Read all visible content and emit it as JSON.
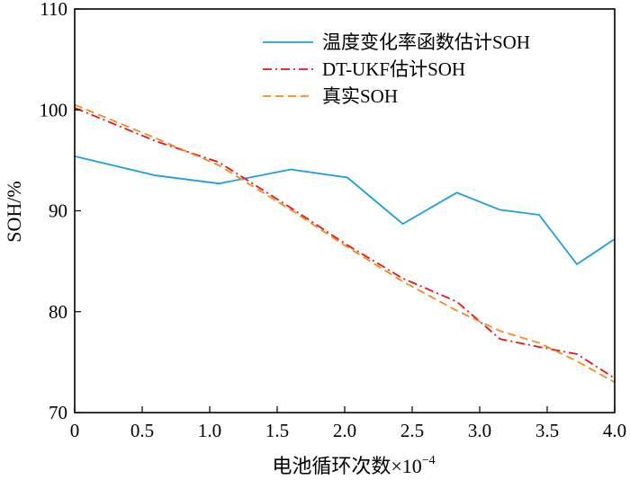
{
  "chart_data": {
    "type": "line",
    "xlabel": "电池循环次数",
    "xlabel_multiplier": "×10",
    "xlabel_exponent": "−4",
    "ylabel": "SOH/%",
    "xlim": [
      0,
      4.0
    ],
    "ylim": [
      70,
      110
    ],
    "x_ticks": [
      "0",
      "0.5",
      "1.0",
      "1.5",
      "2.0",
      "2.5",
      "3.0",
      "3.5",
      "4.0"
    ],
    "y_ticks": [
      "70",
      "80",
      "90",
      "100",
      "110"
    ],
    "grid": false,
    "legend_position": "top-right",
    "series": [
      {
        "name": "温度变化率函数估计SOH",
        "color": "#1e9fd9",
        "dash": "solid",
        "x": [
          0,
          0.6,
          1.07,
          1.6,
          2.02,
          2.43,
          2.83,
          3.15,
          3.44,
          3.72,
          4.0
        ],
        "y": [
          95.4,
          93.5,
          92.7,
          94.1,
          93.3,
          88.7,
          91.8,
          90.1,
          89.6,
          84.7,
          87.2
        ]
      },
      {
        "name": "DT-UKF估计SOH",
        "color": "#e8141c",
        "dash": "dashdot",
        "x": [
          0,
          0.6,
          1.07,
          1.6,
          2.02,
          2.43,
          2.83,
          3.15,
          3.44,
          3.72,
          4.0
        ],
        "y": [
          100.2,
          96.9,
          94.8,
          90.3,
          86.6,
          83.3,
          81.0,
          77.3,
          76.5,
          75.8,
          73.4
        ]
      },
      {
        "name": "真实SOH",
        "color": "#f28c1c",
        "dash": "dashed",
        "x": [
          0,
          0.6,
          1.07,
          1.6,
          2.02,
          2.43,
          2.83,
          3.15,
          3.44,
          3.72,
          4.0
        ],
        "y": [
          100.5,
          97.2,
          94.5,
          90.1,
          86.4,
          83.0,
          80.1,
          78.1,
          76.9,
          75.1,
          73.0
        ]
      }
    ]
  }
}
